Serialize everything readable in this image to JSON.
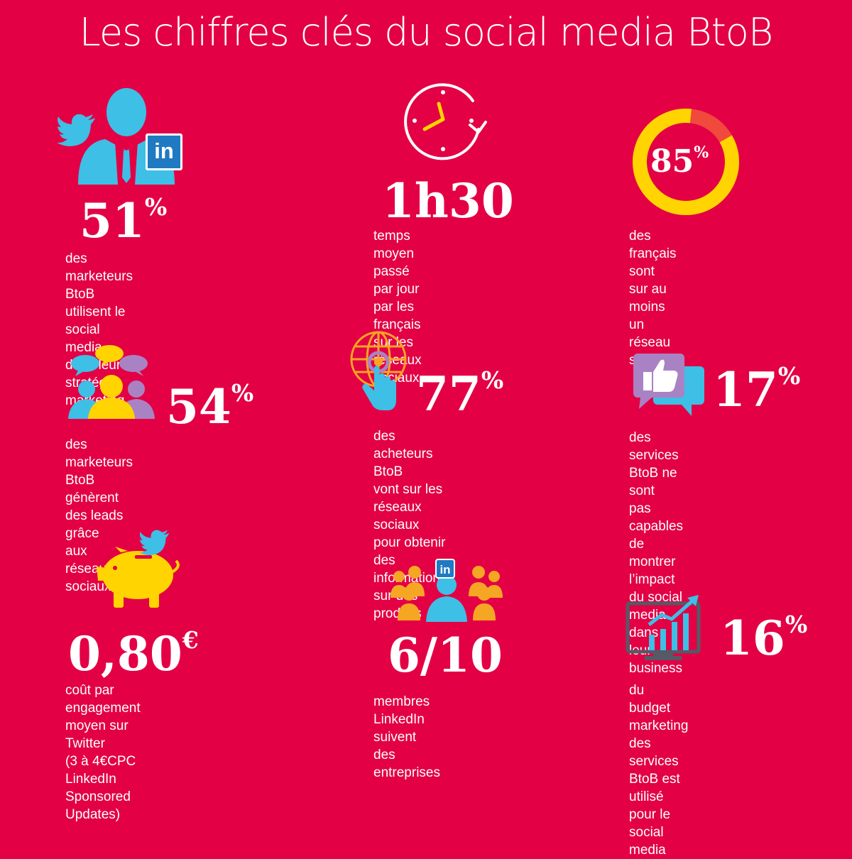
{
  "title": "Les chiffres clés du social media BtoB",
  "colors": {
    "background": "#e30045",
    "blue": "#3ebfe6",
    "yellow": "#ffd400",
    "purple": "#a982c4",
    "orange": "#f5a623",
    "linkedin": "#1f7ac2"
  },
  "stats": [
    {
      "value": "51",
      "unit": "%",
      "icons": [
        "businessman-icon",
        "twitter-bird-icon",
        "linkedin-icon"
      ],
      "text": "des marketeurs BtoB\nutilisent le social\nmedia dans leur\nstratégie marketing"
    },
    {
      "value": "1h30",
      "unit": "",
      "icons": [
        "clock-icon"
      ],
      "text": "temps moyen passé\npar jour par les français\nsur les réseaux sociaux"
    },
    {
      "value": "85",
      "unit": "%",
      "icons": [
        "donut-chart-icon"
      ],
      "fraction": 0.85,
      "text": "des français sont\nsur au moins\nun réseau social"
    },
    {
      "value": "54",
      "unit": "%",
      "icons": [
        "people-speech-bubbles-icon"
      ],
      "text": "des marketeurs BtoB\ngénèrent des leads grâce\naux réseaux sociaux"
    },
    {
      "value": "77",
      "unit": "%",
      "icons": [
        "globe-hand-icon"
      ],
      "text": "des acheteurs BtoB\nvont sur les réseaux\nsociaux pour obtenir\ndes informations\nsur des produits"
    },
    {
      "value": "17",
      "unit": "%",
      "icons": [
        "thumbs-up-chat-icon"
      ],
      "text": "des services BtoB ne sont\npas capables de montrer\nl’impact du social media\ndans leur business"
    },
    {
      "value": "0,80",
      "unit": "€",
      "icons": [
        "piggy-bank-icon",
        "twitter-bird-icon"
      ],
      "text": "coût par engagement\nmoyen sur Twitter\n(3 à 4€CPC LinkedIn\nSponsored Updates)"
    },
    {
      "value": "6/10",
      "unit": "",
      "icons": [
        "linkedin-group-icon"
      ],
      "text": "membres LinkedIn\nsuivent des entreprises"
    },
    {
      "value": "16",
      "unit": "%",
      "icons": [
        "growth-chart-monitor-icon"
      ],
      "text": "du budget marketing des\nservices BtoB est utilisé\npour le social media"
    }
  ]
}
